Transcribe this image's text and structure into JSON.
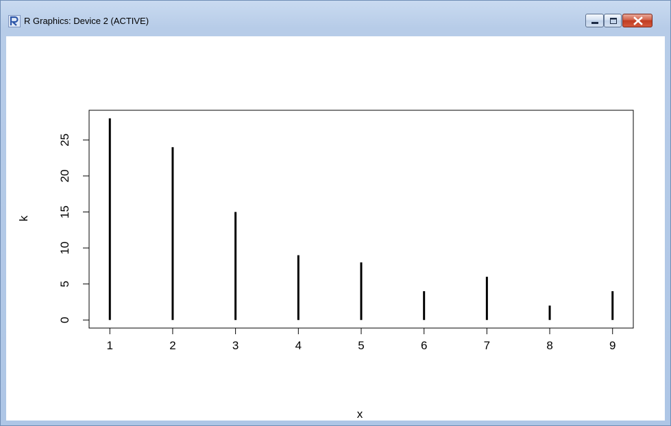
{
  "window": {
    "title": "R Graphics: Device 2 (ACTIVE)",
    "icons": {
      "app": "r-logo-icon",
      "minimize": "minimize-icon",
      "maximize": "maximize-icon",
      "close": "close-icon"
    }
  },
  "chart_data": {
    "type": "bar",
    "style": "histogram-lines",
    "x": [
      "1",
      "2",
      "3",
      "4",
      "5",
      "6",
      "7",
      "8",
      "9"
    ],
    "values": [
      28,
      24,
      15,
      9,
      8,
      4,
      6,
      2,
      4
    ],
    "xlabel": "x",
    "ylabel": "k",
    "xlim": [
      0.67,
      9.33
    ],
    "ylim": [
      -1.12,
      29.12
    ],
    "yticks": [
      "0",
      "5",
      "10",
      "15",
      "20",
      "25"
    ],
    "color": "#000000"
  }
}
